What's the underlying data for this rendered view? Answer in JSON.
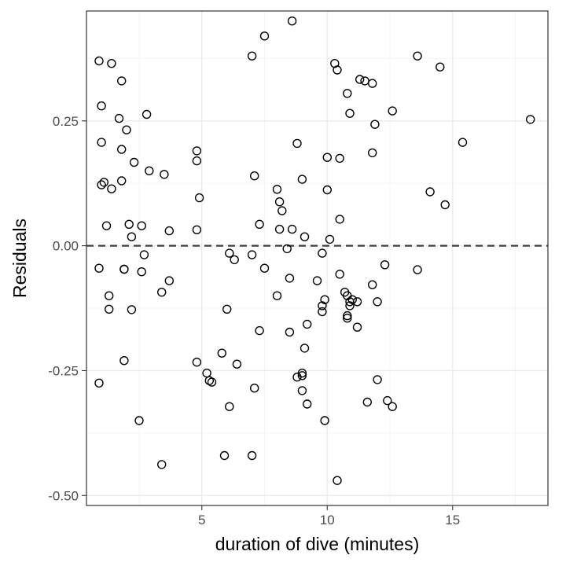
{
  "chart_data": {
    "type": "scatter",
    "xlabel": "duration of dive (minutes)",
    "ylabel": "Residuals",
    "xlim": [
      0.4,
      18.8
    ],
    "ylim": [
      -0.52,
      0.47
    ],
    "x_ticks": [
      5,
      10,
      15
    ],
    "x_tick_labels": [
      "5",
      "10",
      "15"
    ],
    "y_ticks": [
      -0.5,
      -0.25,
      0,
      0.25
    ],
    "y_tick_labels": [
      "-0.50",
      "-0.25",
      "0.00",
      "0.25"
    ],
    "reference_line": {
      "y": 0,
      "style": "dashed"
    },
    "grid": true,
    "marker": "open-circle",
    "points": [
      [
        0.9,
        0.37
      ],
      [
        1.4,
        0.365
      ],
      [
        1.8,
        0.33
      ],
      [
        1.0,
        0.28
      ],
      [
        1.7,
        0.255
      ],
      [
        2.0,
        0.232
      ],
      [
        1.0,
        0.207
      ],
      [
        1.8,
        0.193
      ],
      [
        2.3,
        0.167
      ],
      [
        1.1,
        0.127
      ],
      [
        1.0,
        0.122
      ],
      [
        1.4,
        0.114
      ],
      [
        1.8,
        0.13
      ],
      [
        2.9,
        0.15
      ],
      [
        2.8,
        0.263
      ],
      [
        3.5,
        0.143
      ],
      [
        1.2,
        0.04
      ],
      [
        2.1,
        0.043
      ],
      [
        2.2,
        0.018
      ],
      [
        2.6,
        0.04
      ],
      [
        2.7,
        -0.018
      ],
      [
        3.7,
        0.03
      ],
      [
        0.9,
        -0.045
      ],
      [
        1.9,
        -0.047
      ],
      [
        1.9,
        -0.047
      ],
      [
        2.6,
        -0.052
      ],
      [
        3.7,
        -0.07
      ],
      [
        1.3,
        -0.1
      ],
      [
        3.4,
        -0.093
      ],
      [
        1.3,
        -0.127
      ],
      [
        2.2,
        -0.128
      ],
      [
        1.9,
        -0.23
      ],
      [
        0.9,
        -0.275
      ],
      [
        2.5,
        -0.35
      ],
      [
        3.4,
        -0.438
      ],
      [
        4.8,
        0.19
      ],
      [
        4.8,
        0.17
      ],
      [
        4.9,
        0.096
      ],
      [
        4.8,
        0.032
      ],
      [
        4.8,
        -0.233
      ],
      [
        5.2,
        -0.255
      ],
      [
        5.3,
        -0.27
      ],
      [
        5.4,
        -0.273
      ],
      [
        6.0,
        -0.127
      ],
      [
        6.1,
        -0.015
      ],
      [
        6.3,
        -0.028
      ],
      [
        5.8,
        -0.215
      ],
      [
        6.4,
        -0.237
      ],
      [
        6.1,
        -0.322
      ],
      [
        5.9,
        -0.42
      ],
      [
        7.0,
        0.38
      ],
      [
        7.5,
        0.42
      ],
      [
        7.1,
        0.14
      ],
      [
        7.3,
        0.043
      ],
      [
        7.0,
        -0.018
      ],
      [
        7.5,
        -0.045
      ],
      [
        7.3,
        -0.17
      ],
      [
        7.1,
        -0.285
      ],
      [
        7.0,
        -0.42
      ],
      [
        8.6,
        0.45
      ],
      [
        8.0,
        0.113
      ],
      [
        8.1,
        0.088
      ],
      [
        8.2,
        0.07
      ],
      [
        8.1,
        0.033
      ],
      [
        8.6,
        0.033
      ],
      [
        8.4,
        -0.006
      ],
      [
        8.5,
        -0.065
      ],
      [
        8.0,
        -0.1
      ],
      [
        8.5,
        -0.173
      ],
      [
        8.8,
        0.205
      ],
      [
        9.0,
        0.133
      ],
      [
        9.1,
        0.018
      ],
      [
        9.8,
        -0.015
      ],
      [
        9.6,
        -0.07
      ],
      [
        9.9,
        -0.108
      ],
      [
        9.8,
        -0.12
      ],
      [
        9.8,
        -0.132
      ],
      [
        9.2,
        -0.157
      ],
      [
        9.1,
        -0.205
      ],
      [
        9.0,
        -0.255
      ],
      [
        9.0,
        -0.26
      ],
      [
        8.8,
        -0.263
      ],
      [
        9.0,
        -0.29
      ],
      [
        9.2,
        -0.317
      ],
      [
        9.9,
        -0.35
      ],
      [
        10.3,
        0.365
      ],
      [
        10.4,
        0.352
      ],
      [
        10.0,
        0.177
      ],
      [
        10.5,
        0.175
      ],
      [
        10.0,
        0.112
      ],
      [
        10.1,
        0.013
      ],
      [
        10.5,
        0.053
      ],
      [
        10.5,
        -0.057
      ],
      [
        10.7,
        -0.093
      ],
      [
        10.8,
        -0.1
      ],
      [
        10.9,
        -0.112
      ],
      [
        10.9,
        -0.12
      ],
      [
        10.8,
        -0.14
      ],
      [
        10.8,
        -0.145
      ],
      [
        11.2,
        -0.112
      ],
      [
        11.0,
        -0.108
      ],
      [
        11.2,
        -0.163
      ],
      [
        10.4,
        -0.47
      ],
      [
        10.8,
        0.305
      ],
      [
        10.9,
        0.265
      ],
      [
        11.3,
        0.333
      ],
      [
        11.5,
        0.33
      ],
      [
        11.8,
        0.325
      ],
      [
        11.8,
        0.186
      ],
      [
        11.9,
        0.243
      ],
      [
        12.3,
        -0.038
      ],
      [
        11.8,
        -0.078
      ],
      [
        12.0,
        -0.112
      ],
      [
        12.0,
        -0.268
      ],
      [
        11.6,
        -0.313
      ],
      [
        12.4,
        -0.31
      ],
      [
        12.6,
        -0.322
      ],
      [
        12.6,
        0.27
      ],
      [
        13.6,
        0.38
      ],
      [
        13.6,
        -0.048
      ],
      [
        14.1,
        0.108
      ],
      [
        14.5,
        0.358
      ],
      [
        14.7,
        0.082
      ],
      [
        15.4,
        0.207
      ],
      [
        18.1,
        0.253
      ]
    ]
  }
}
